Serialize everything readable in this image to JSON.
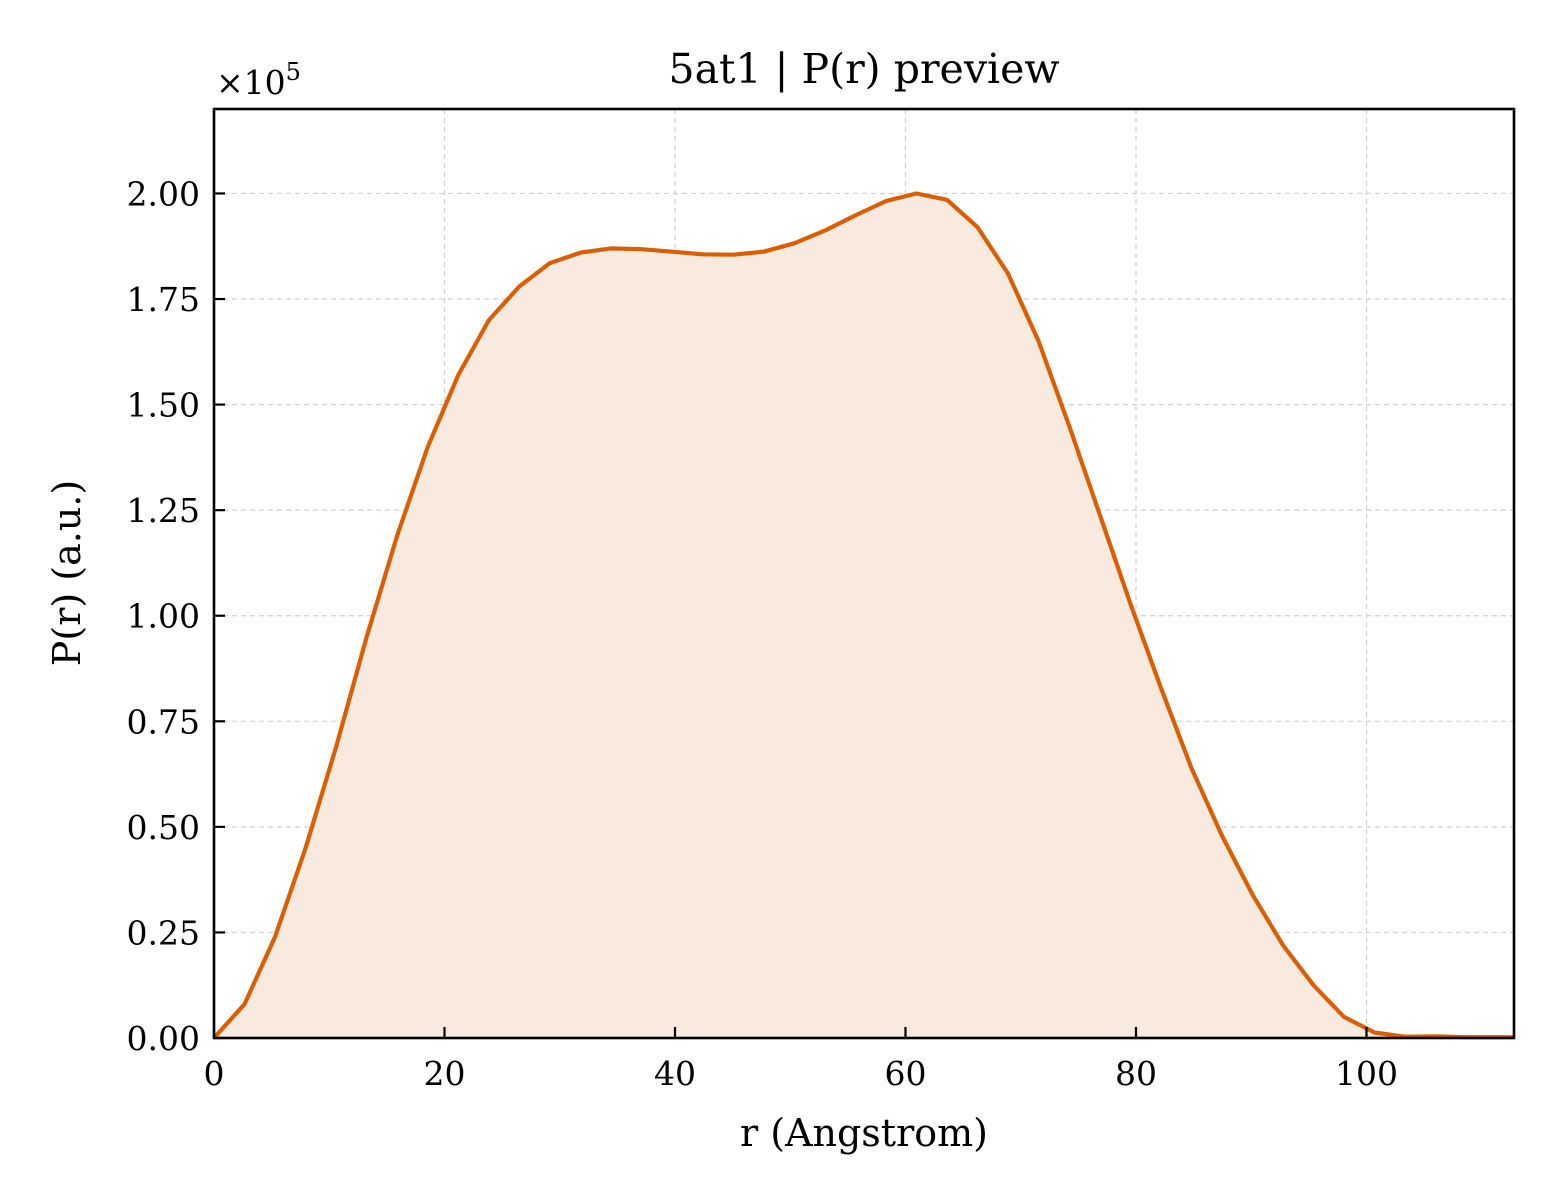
{
  "chart_data": {
    "type": "area",
    "title": "5at1 | P(r) preview",
    "xlabel": "r (Angstrom)",
    "ylabel": "P(r) (a.u.)",
    "y_multiplier": {
      "base": "×10",
      "exponent": "5"
    },
    "xlim": [
      0,
      112.8
    ],
    "ylim": [
      0,
      2.2
    ],
    "grid": true,
    "legend": "none",
    "x_ticks": [
      0,
      20,
      40,
      60,
      80,
      100
    ],
    "x_tick_labels": [
      "0",
      "20",
      "40",
      "60",
      "80",
      "100"
    ],
    "y_ticks": [
      0,
      0.25,
      0.5,
      0.75,
      1.0,
      1.25,
      1.5,
      1.75,
      2.0
    ],
    "y_tick_labels": [
      "0.00",
      "0.25",
      "0.50",
      "0.75",
      "1.00",
      "1.25",
      "1.50",
      "1.75",
      "2.00"
    ],
    "colors": {
      "line": "#d95f02",
      "fill": "#f8eadf"
    },
    "series": [
      {
        "x": [
          0,
          2.65,
          5.3,
          7.95,
          10.6,
          13.25,
          15.9,
          18.55,
          21.2,
          23.85,
          26.5,
          29.15,
          31.8,
          34.45,
          37.1,
          39.75,
          42.4,
          45.05,
          47.7,
          50.35,
          53.0,
          55.65,
          58.3,
          60.95,
          63.6,
          66.25,
          68.9,
          71.55,
          74.2,
          76.85,
          79.5,
          82.15,
          84.8,
          87.45,
          90.1,
          92.75,
          95.4,
          98.05,
          100.7,
          103.35,
          106.0,
          108.65,
          112.8
        ],
        "values": [
          0.0,
          0.08,
          0.24,
          0.45,
          0.69,
          0.95,
          1.19,
          1.4,
          1.57,
          1.7,
          1.78,
          1.835,
          1.86,
          1.87,
          1.868,
          1.862,
          1.856,
          1.855,
          1.862,
          1.882,
          1.912,
          1.948,
          1.982,
          2.0,
          1.985,
          1.92,
          1.81,
          1.65,
          1.45,
          1.24,
          1.03,
          0.83,
          0.64,
          0.48,
          0.34,
          0.22,
          0.125,
          0.05,
          0.013,
          0.003,
          0.004,
          0.002,
          0.002
        ]
      }
    ]
  }
}
